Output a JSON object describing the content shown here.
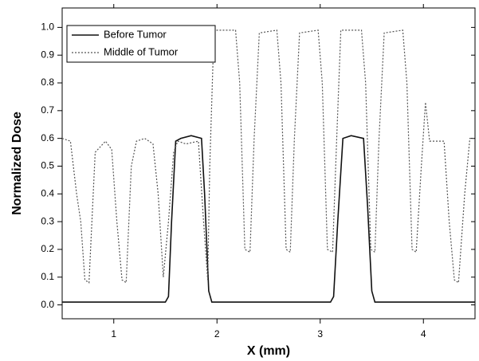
{
  "chart_data": {
    "type": "line",
    "xlabel": "X (mm)",
    "ylabel": "Normalized Dose",
    "xlim": [
      0.5,
      4.5
    ],
    "xticks": [
      1,
      2,
      3,
      4
    ],
    "ylim": [
      -0.05,
      1.07
    ],
    "yticks": [
      {
        "value": 0,
        "label": "0.0"
      },
      0.1,
      0.2,
      0.3,
      0.4,
      0.5,
      0.6,
      0.7,
      0.8,
      0.9,
      {
        "value": 1,
        "label": "1.0"
      }
    ],
    "legend": "upper-left",
    "series": [
      {
        "name": "Before Tumor",
        "color": "#111111",
        "line_style": "solid",
        "x": [
          0.5,
          1.5,
          1.53,
          1.56,
          1.6,
          1.65,
          1.75,
          1.85,
          1.88,
          1.92,
          1.95,
          3.1,
          3.13,
          3.17,
          3.22,
          3.3,
          3.42,
          3.46,
          3.5,
          3.53,
          4.5
        ],
        "values": [
          0.01,
          0.01,
          0.03,
          0.3,
          0.59,
          0.6,
          0.61,
          0.6,
          0.4,
          0.05,
          0.01,
          0.01,
          0.03,
          0.3,
          0.6,
          0.61,
          0.6,
          0.35,
          0.05,
          0.01,
          0.01
        ]
      },
      {
        "name": "Middle of Tumor",
        "color": "#555555",
        "line_style": "dotted",
        "x": [
          0.5,
          0.58,
          0.64,
          0.68,
          0.72,
          0.76,
          0.82,
          0.92,
          0.98,
          1.03,
          1.08,
          1.12,
          1.17,
          1.22,
          1.3,
          1.38,
          1.43,
          1.48,
          1.53,
          1.58,
          1.62,
          1.7,
          1.82,
          1.87,
          1.91,
          1.93,
          1.97,
          2.0,
          2.18,
          2.22,
          2.27,
          2.32,
          2.36,
          2.41,
          2.58,
          2.62,
          2.67,
          2.71,
          2.75,
          2.8,
          2.98,
          3.02,
          3.07,
          3.12,
          3.16,
          3.2,
          3.4,
          3.44,
          3.49,
          3.53,
          3.57,
          3.62,
          3.8,
          3.84,
          3.89,
          3.93,
          3.98,
          4.02,
          4.06,
          4.2,
          4.25,
          4.3,
          4.34,
          4.4,
          4.45,
          4.5
        ],
        "values": [
          0.6,
          0.59,
          0.4,
          0.3,
          0.09,
          0.08,
          0.55,
          0.59,
          0.56,
          0.3,
          0.09,
          0.08,
          0.5,
          0.59,
          0.6,
          0.58,
          0.4,
          0.1,
          0.3,
          0.55,
          0.59,
          0.58,
          0.59,
          0.3,
          0.09,
          0.5,
          0.98,
          0.99,
          0.99,
          0.8,
          0.2,
          0.19,
          0.6,
          0.98,
          0.99,
          0.8,
          0.2,
          0.19,
          0.6,
          0.98,
          0.99,
          0.8,
          0.2,
          0.19,
          0.6,
          0.99,
          0.99,
          0.8,
          0.2,
          0.19,
          0.6,
          0.98,
          0.99,
          0.8,
          0.2,
          0.19,
          0.5,
          0.73,
          0.59,
          0.59,
          0.3,
          0.09,
          0.08,
          0.4,
          0.6,
          0.6
        ]
      }
    ]
  }
}
